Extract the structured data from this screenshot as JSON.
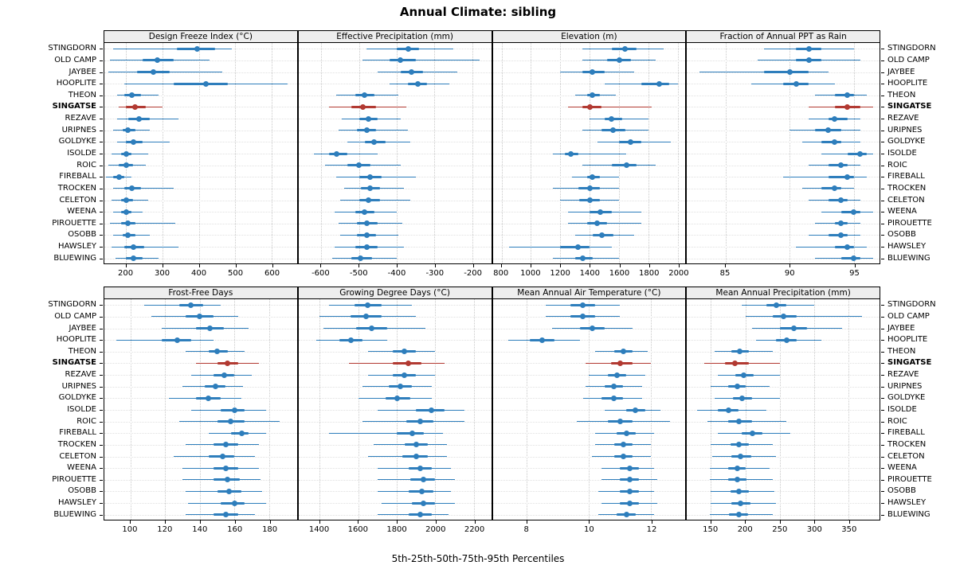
{
  "chart_data": {
    "type": "scatter",
    "subtype": "percentile-dotplot",
    "title": "Annual Climate: sibling",
    "caption": "5th-25th-50th-75th-95th Percentiles",
    "percentile_labels": [
      "5th",
      "25th",
      "50th",
      "75th",
      "95th"
    ],
    "stations": [
      "STINGDORN",
      "OLD CAMP",
      "JAYBEE",
      "HOOPLITE",
      "THEON",
      "SINGATSE",
      "REZAVE",
      "URIPNES",
      "GOLDYKE",
      "ISOLDE",
      "ROIC",
      "FIREBALL",
      "TROCKEN",
      "CELETON",
      "WEENA",
      "PIROUETTE",
      "OSOBB",
      "HAWSLEY",
      "BLUEWING"
    ],
    "highlight_station": "SINGATSE",
    "colors": {
      "normal": "#2e7ebc",
      "highlight": "#b23a32"
    },
    "legend_position": "none",
    "grid": "dotted",
    "panels": [
      {
        "title": "Design Freeze Index (°C)",
        "xlim": [
          140,
          670
        ],
        "ticks": [
          200,
          300,
          400,
          500,
          600
        ],
        "values": [
          [
            165,
            340,
            395,
            445,
            490
          ],
          [
            155,
            245,
            285,
            330,
            430
          ],
          [
            150,
            230,
            275,
            320,
            465
          ],
          [
            195,
            330,
            420,
            480,
            645
          ],
          [
            175,
            195,
            215,
            240,
            290
          ],
          [
            180,
            200,
            225,
            255,
            300
          ],
          [
            175,
            205,
            235,
            265,
            345
          ],
          [
            165,
            190,
            205,
            225,
            265
          ],
          [
            175,
            200,
            220,
            245,
            320
          ],
          [
            160,
            185,
            200,
            215,
            260
          ],
          [
            150,
            180,
            200,
            220,
            255
          ],
          [
            145,
            165,
            180,
            195,
            215
          ],
          [
            165,
            195,
            215,
            240,
            330
          ],
          [
            160,
            185,
            200,
            220,
            260
          ],
          [
            165,
            185,
            200,
            215,
            245
          ],
          [
            155,
            185,
            205,
            225,
            335
          ],
          [
            165,
            190,
            205,
            225,
            265
          ],
          [
            160,
            195,
            220,
            250,
            345
          ],
          [
            170,
            200,
            220,
            245,
            290
          ]
        ]
      },
      {
        "title": "Effective Precipitation (mm)",
        "xlim": [
          -660,
          -150
        ],
        "ticks": [
          -600,
          -500,
          -400,
          -300,
          -200
        ],
        "values": [
          [
            -480,
            -400,
            -370,
            -340,
            -250
          ],
          [
            -490,
            -420,
            -390,
            -350,
            -180
          ],
          [
            -450,
            -390,
            -360,
            -330,
            -240
          ],
          [
            -420,
            -370,
            -345,
            -320,
            -260
          ],
          [
            -560,
            -510,
            -485,
            -460,
            -395
          ],
          [
            -580,
            -520,
            -490,
            -455,
            -375
          ],
          [
            -545,
            -500,
            -475,
            -450,
            -390
          ],
          [
            -555,
            -505,
            -480,
            -455,
            -370
          ],
          [
            -530,
            -485,
            -460,
            -430,
            -365
          ],
          [
            -620,
            -580,
            -560,
            -530,
            -450
          ],
          [
            -590,
            -530,
            -500,
            -470,
            -390
          ],
          [
            -560,
            -500,
            -470,
            -440,
            -350
          ],
          [
            -540,
            -495,
            -470,
            -445,
            -380
          ],
          [
            -550,
            -500,
            -475,
            -445,
            -365
          ],
          [
            -565,
            -510,
            -485,
            -460,
            -400
          ],
          [
            -555,
            -505,
            -480,
            -450,
            -385
          ],
          [
            -550,
            -505,
            -480,
            -455,
            -395
          ],
          [
            -565,
            -510,
            -480,
            -450,
            -380
          ],
          [
            -570,
            -520,
            -495,
            -465,
            -400
          ]
        ]
      },
      {
        "title": "Elevation (m)",
        "xlim": [
          740,
          2050
        ],
        "ticks": [
          800,
          1000,
          1200,
          1400,
          1600,
          1800,
          2000
        ],
        "values": [
          [
            1350,
            1550,
            1640,
            1720,
            1900
          ],
          [
            1350,
            1520,
            1600,
            1680,
            1850
          ],
          [
            1200,
            1350,
            1420,
            1500,
            1700
          ],
          [
            1500,
            1750,
            1870,
            1940,
            2000
          ],
          [
            1300,
            1380,
            1420,
            1470,
            1580
          ],
          [
            1250,
            1350,
            1400,
            1480,
            1820
          ],
          [
            1400,
            1500,
            1550,
            1620,
            1800
          ],
          [
            1350,
            1480,
            1560,
            1640,
            1800
          ],
          [
            1450,
            1600,
            1680,
            1750,
            1950
          ],
          [
            1150,
            1230,
            1270,
            1320,
            1650
          ],
          [
            1350,
            1550,
            1650,
            1720,
            1850
          ],
          [
            1280,
            1380,
            1420,
            1470,
            1600
          ],
          [
            1150,
            1320,
            1400,
            1470,
            1600
          ],
          [
            1200,
            1330,
            1400,
            1470,
            1600
          ],
          [
            1250,
            1400,
            1470,
            1550,
            1750
          ],
          [
            1250,
            1380,
            1450,
            1520,
            1750
          ],
          [
            1300,
            1420,
            1480,
            1560,
            1700
          ],
          [
            850,
            1200,
            1320,
            1400,
            1550
          ],
          [
            1150,
            1300,
            1350,
            1420,
            1600
          ]
        ]
      },
      {
        "title": "Fraction of Annual PPT as Rain",
        "xlim": [
          82,
          97
        ],
        "ticks": [
          85,
          90,
          95
        ],
        "values": [
          [
            88,
            90.5,
            91.5,
            92.5,
            95
          ],
          [
            87.5,
            90.5,
            91.5,
            92.5,
            95.5
          ],
          [
            83,
            88,
            90,
            91.5,
            93
          ],
          [
            87,
            89.5,
            90.5,
            91.5,
            93.5
          ],
          [
            92,
            93.5,
            94.5,
            95,
            96
          ],
          [
            91.5,
            93.5,
            94.5,
            95.5,
            96.5
          ],
          [
            91.5,
            93,
            93.5,
            94.5,
            95.5
          ],
          [
            90,
            92,
            93,
            94,
            95.5
          ],
          [
            91,
            92.5,
            93.5,
            94,
            95.5
          ],
          [
            92.5,
            94.5,
            95.5,
            96,
            96.5
          ],
          [
            91.5,
            93,
            94,
            94.5,
            95.5
          ],
          [
            89.5,
            93,
            94.5,
            95,
            96
          ],
          [
            91,
            92.5,
            93.5,
            94,
            95
          ],
          [
            91.5,
            93,
            94,
            94.5,
            95.5
          ],
          [
            92.5,
            94,
            95,
            95.5,
            96.5
          ],
          [
            92,
            93.5,
            94,
            94.5,
            95.5
          ],
          [
            91.5,
            93,
            94,
            94.5,
            95.5
          ],
          [
            90.5,
            93.5,
            94.5,
            95,
            96
          ],
          [
            92,
            94,
            95,
            95.5,
            96.5
          ]
        ]
      },
      {
        "title": "Frost-Free Days",
        "xlim": [
          85,
          196
        ],
        "ticks": [
          100,
          120,
          140,
          160,
          180
        ],
        "values": [
          [
            108,
            128,
            135,
            142,
            152
          ],
          [
            112,
            132,
            140,
            148,
            162
          ],
          [
            118,
            138,
            146,
            154,
            168
          ],
          [
            92,
            118,
            127,
            135,
            148
          ],
          [
            132,
            145,
            150,
            156,
            166
          ],
          [
            138,
            150,
            156,
            162,
            174
          ],
          [
            135,
            148,
            154,
            160,
            170
          ],
          [
            130,
            143,
            149,
            155,
            165
          ],
          [
            122,
            138,
            145,
            152,
            164
          ],
          [
            135,
            152,
            160,
            166,
            178
          ],
          [
            128,
            150,
            158,
            166,
            186
          ],
          [
            145,
            158,
            164,
            168,
            178
          ],
          [
            132,
            148,
            155,
            162,
            174
          ],
          [
            125,
            145,
            153,
            160,
            172
          ],
          [
            130,
            148,
            155,
            162,
            174
          ],
          [
            130,
            148,
            156,
            163,
            175
          ],
          [
            132,
            150,
            157,
            164,
            176
          ],
          [
            133,
            152,
            160,
            166,
            178
          ],
          [
            132,
            148,
            155,
            162,
            172
          ]
        ]
      },
      {
        "title": "Growing Degree Days (°C)",
        "xlim": [
          1290,
          2290
        ],
        "ticks": [
          1400,
          1600,
          1800,
          2000,
          2200
        ],
        "values": [
          [
            1450,
            1580,
            1650,
            1720,
            1880
          ],
          [
            1400,
            1560,
            1640,
            1720,
            1900
          ],
          [
            1420,
            1590,
            1670,
            1750,
            1950
          ],
          [
            1380,
            1500,
            1560,
            1620,
            1750
          ],
          [
            1650,
            1780,
            1840,
            1900,
            2000
          ],
          [
            1550,
            1780,
            1860,
            1930,
            2050
          ],
          [
            1650,
            1780,
            1840,
            1900,
            2000
          ],
          [
            1620,
            1760,
            1820,
            1880,
            1980
          ],
          [
            1600,
            1740,
            1800,
            1870,
            1980
          ],
          [
            1700,
            1900,
            1980,
            2050,
            2150
          ],
          [
            1620,
            1850,
            1920,
            1990,
            2150
          ],
          [
            1450,
            1800,
            1880,
            1940,
            2040
          ],
          [
            1680,
            1840,
            1900,
            1960,
            2060
          ],
          [
            1650,
            1830,
            1900,
            1960,
            2060
          ],
          [
            1700,
            1860,
            1920,
            1980,
            2080
          ],
          [
            1700,
            1870,
            1940,
            2000,
            2100
          ],
          [
            1700,
            1860,
            1930,
            1990,
            2080
          ],
          [
            1720,
            1880,
            1940,
            2000,
            2100
          ],
          [
            1700,
            1860,
            1920,
            1980,
            2070
          ]
        ]
      },
      {
        "title": "Mean Annual Air Temperature (°C)",
        "xlim": [
          6.9,
          13.1
        ],
        "ticks": [
          8,
          10,
          12
        ],
        "values": [
          [
            8.6,
            9.4,
            9.8,
            10.2,
            11.0
          ],
          [
            8.6,
            9.4,
            9.8,
            10.2,
            11.0
          ],
          [
            8.8,
            9.7,
            10.1,
            10.5,
            11.4
          ],
          [
            7.4,
            8.1,
            8.5,
            8.9,
            9.7
          ],
          [
            10.2,
            10.8,
            11.1,
            11.4,
            11.9
          ],
          [
            9.9,
            10.7,
            11.0,
            11.4,
            12.0
          ],
          [
            10.0,
            10.6,
            10.9,
            11.2,
            11.8
          ],
          [
            9.9,
            10.5,
            10.8,
            11.1,
            11.7
          ],
          [
            9.8,
            10.4,
            10.8,
            11.1,
            11.7
          ],
          [
            10.5,
            11.2,
            11.5,
            11.8,
            12.3
          ],
          [
            9.6,
            10.6,
            11.0,
            11.4,
            12.6
          ],
          [
            10.2,
            10.9,
            11.2,
            11.5,
            12.1
          ],
          [
            10.2,
            10.8,
            11.1,
            11.4,
            12.0
          ],
          [
            10.1,
            10.8,
            11.1,
            11.4,
            12.0
          ],
          [
            10.4,
            11.0,
            11.3,
            11.6,
            12.1
          ],
          [
            10.4,
            11.0,
            11.3,
            11.6,
            12.2
          ],
          [
            10.3,
            11.0,
            11.3,
            11.6,
            12.1
          ],
          [
            10.4,
            11.0,
            11.3,
            11.6,
            12.2
          ],
          [
            10.3,
            10.9,
            11.2,
            11.5,
            12.1
          ]
        ]
      },
      {
        "title": "Mean Annual Precipitation (mm)",
        "xlim": [
          115,
          395
        ],
        "ticks": [
          150,
          200,
          250,
          300,
          350
        ],
        "values": [
          [
            195,
            230,
            245,
            260,
            300
          ],
          [
            200,
            240,
            255,
            275,
            370
          ],
          [
            210,
            250,
            270,
            290,
            340
          ],
          [
            215,
            245,
            260,
            275,
            310
          ],
          [
            155,
            180,
            192,
            205,
            240
          ],
          [
            140,
            170,
            185,
            205,
            250
          ],
          [
            160,
            185,
            198,
            212,
            250
          ],
          [
            150,
            175,
            188,
            200,
            235
          ],
          [
            155,
            182,
            195,
            210,
            250
          ],
          [
            130,
            160,
            175,
            190,
            230
          ],
          [
            145,
            175,
            190,
            210,
            260
          ],
          [
            160,
            195,
            210,
            225,
            265
          ],
          [
            150,
            178,
            190,
            205,
            240
          ],
          [
            152,
            180,
            193,
            208,
            245
          ],
          [
            148,
            175,
            188,
            200,
            235
          ],
          [
            148,
            175,
            188,
            202,
            240
          ],
          [
            150,
            178,
            190,
            205,
            242
          ],
          [
            150,
            180,
            193,
            207,
            245
          ],
          [
            148,
            176,
            190,
            204,
            240
          ]
        ]
      }
    ]
  }
}
